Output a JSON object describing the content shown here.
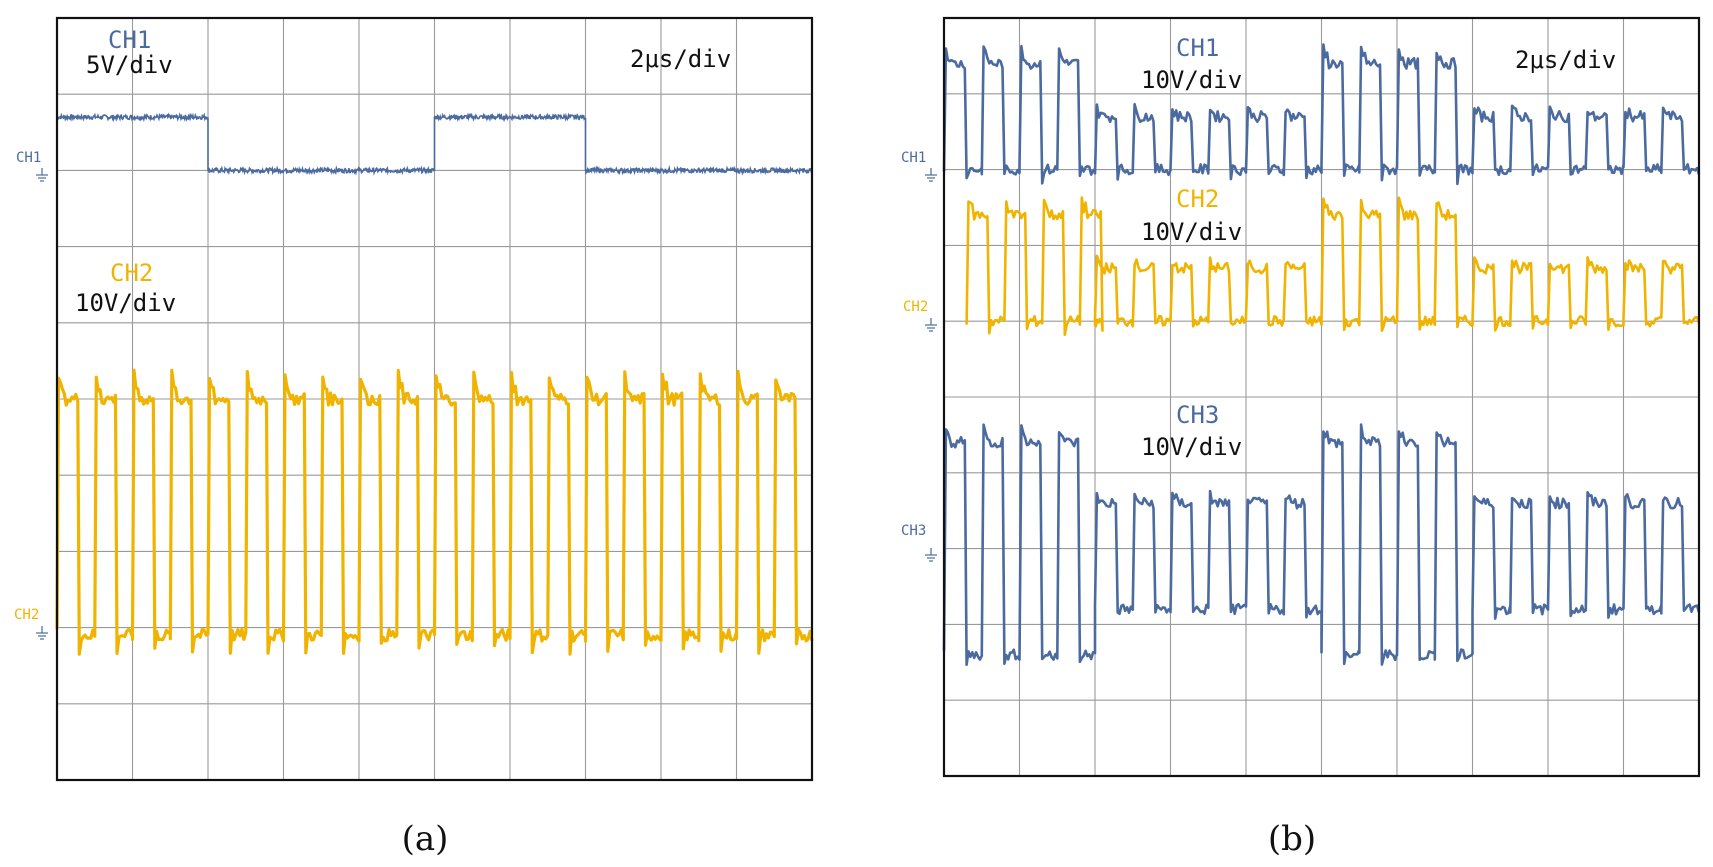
{
  "colors": {
    "ch_blue": "#4a6aa0",
    "ch_yellow": "#f0b400",
    "grid": "#9a9a9a",
    "frame": "#111111",
    "text": "#111111"
  },
  "chart_data": [
    {
      "type": "line",
      "panel_label": "(a)",
      "timebase": "2μs/div",
      "divisions": {
        "x": 10,
        "y": 10
      },
      "xlim": [
        0,
        20
      ],
      "ylim": [
        0,
        10
      ],
      "grid": true,
      "channels": [
        {
          "name": "CH1",
          "scale": "5V/div",
          "marker": "CH1",
          "color": "#4a6aa0",
          "ground_div": 8.0
        },
        {
          "name": "CH2",
          "scale": "10V/div",
          "marker": "CH2",
          "color": "#f0b400",
          "ground_div": 1.9
        }
      ],
      "series": [
        {
          "name": "CH1",
          "kind": "gate",
          "low": 8.0,
          "high": 8.7,
          "segments": [
            [
              0,
              4,
              "high"
            ],
            [
              4,
              10,
              "low"
            ],
            [
              10,
              14,
              "high"
            ],
            [
              14,
              20,
              "low"
            ]
          ],
          "noise": 0.03,
          "color": "#4a6aa0"
        },
        {
          "name": "CH2",
          "kind": "pulse",
          "low": 1.9,
          "high": 5.0,
          "overshoot": 0.3,
          "period": 1.0,
          "duty": 0.55,
          "start": 0,
          "end": 20,
          "noise": 0.08,
          "color": "#f0b400"
        }
      ]
    },
    {
      "type": "line",
      "panel_label": "(b)",
      "timebase": "2μs/div",
      "divisions": {
        "x": 10,
        "y": 10
      },
      "xlim": [
        0,
        20
      ],
      "ylim": [
        0,
        10
      ],
      "grid": true,
      "channels": [
        {
          "name": "CH1",
          "scale": "10V/div",
          "marker": "CH1",
          "color": "#4a6aa0",
          "ground_div": 8.0
        },
        {
          "name": "CH2",
          "scale": "10V/div",
          "marker": "CH2",
          "color": "#f0b400",
          "ground_div": 6.0
        },
        {
          "name": "CH3",
          "scale": "10V/div",
          "marker": "CH3",
          "color": "#4a6aa0",
          "ground_div": 3.0
        }
      ]
    }
  ]
}
